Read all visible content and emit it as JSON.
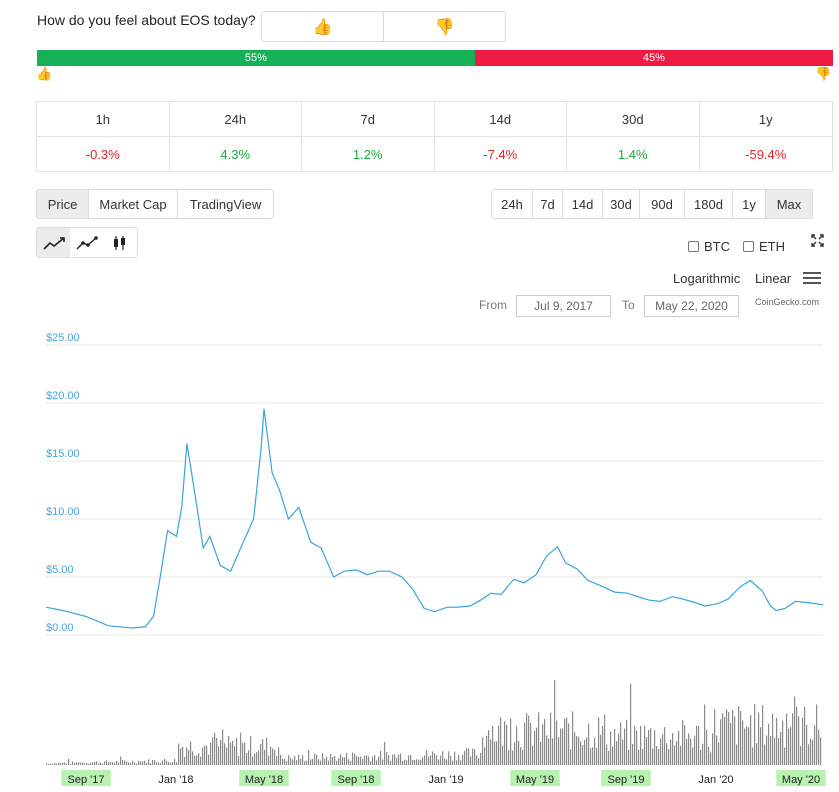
{
  "sentiment": {
    "question": "How do you feel about EOS today?",
    "up_icon": "thumbs-up-icon",
    "down_icon": "thumbs-down-icon",
    "up_percent": 55,
    "down_percent": 45,
    "up_label": "55%",
    "down_label": "45%",
    "up_color": "#16b157",
    "down_color": "#ee1a43"
  },
  "price_change": {
    "headers": [
      "1h",
      "24h",
      "7d",
      "14d",
      "30d",
      "1y"
    ],
    "values": [
      "-0.3%",
      "4.3%",
      "1.2%",
      "-7.4%",
      "1.4%",
      "-59.4%"
    ],
    "directions": [
      "neg",
      "pos",
      "pos",
      "neg",
      "pos",
      "neg"
    ]
  },
  "chart_tabs": {
    "items": [
      "Price",
      "Market Cap",
      "TradingView"
    ],
    "active": "Price"
  },
  "range_tabs": {
    "items": [
      "24h",
      "7d",
      "14d",
      "30d",
      "90d",
      "180d",
      "1y",
      "Max"
    ],
    "active": "Max"
  },
  "chart_style": {
    "items": [
      "line-chart-icon",
      "line-markers-icon",
      "candlestick-icon"
    ],
    "active": "line-chart-icon"
  },
  "compare": {
    "btc_label": "BTC",
    "eth_label": "ETH"
  },
  "scale": {
    "log_label": "Logarithmic",
    "linear_label": "Linear"
  },
  "date_range": {
    "from_label": "From",
    "from_value": "Jul 9, 2017",
    "to_label": "To",
    "to_value": "May 22, 2020"
  },
  "credit": "CoinGecko.com",
  "chart_data": {
    "type": "line",
    "ylim": [
      0,
      25
    ],
    "yticks": [
      "$0.00",
      "$5.00",
      "$10.00",
      "$15.00",
      "$20.00",
      "$25.00"
    ],
    "ytick_values": [
      0,
      5,
      10,
      15,
      20,
      25
    ],
    "xticks": [
      "Sep '17",
      "Jan '18",
      "May '18",
      "Sep '18",
      "Jan '19",
      "May '19",
      "Sep '19",
      "Jan '20",
      "May '20"
    ],
    "xtick_highlight": [
      true,
      false,
      true,
      true,
      false,
      true,
      true,
      false,
      true
    ],
    "line_color": "#3aa3d9",
    "highlight_color": "#b7f2b1",
    "series": [
      {
        "x": [
          "2017-07-09",
          "2017-08-01",
          "2017-09-01",
          "2017-10-01",
          "2017-11-01",
          "2017-11-20",
          "2017-12-01",
          "2017-12-10",
          "2017-12-20",
          "2018-01-01",
          "2018-01-08",
          "2018-01-15",
          "2018-01-25",
          "2018-02-06",
          "2018-02-15",
          "2018-03-01",
          "2018-03-15",
          "2018-04-01",
          "2018-04-15",
          "2018-04-25",
          "2018-04-29",
          "2018-05-10",
          "2018-05-20",
          "2018-06-01",
          "2018-06-15",
          "2018-07-01",
          "2018-07-15",
          "2018-08-01",
          "2018-08-15",
          "2018-09-01",
          "2018-09-15",
          "2018-10-01",
          "2018-10-15",
          "2018-11-01",
          "2018-11-15",
          "2018-12-01",
          "2018-12-15",
          "2019-01-01",
          "2019-01-15",
          "2019-02-01",
          "2019-02-15",
          "2019-03-01",
          "2019-03-15",
          "2019-04-01",
          "2019-04-15",
          "2019-05-01",
          "2019-05-15",
          "2019-05-30",
          "2019-06-10",
          "2019-06-25",
          "2019-07-10",
          "2019-07-25",
          "2019-08-15",
          "2019-09-01",
          "2019-09-15",
          "2019-10-01",
          "2019-10-15",
          "2019-11-01",
          "2019-11-15",
          "2019-12-01",
          "2019-12-15",
          "2020-01-01",
          "2020-01-15",
          "2020-02-01",
          "2020-02-14",
          "2020-03-01",
          "2020-03-12",
          "2020-03-20",
          "2020-04-01",
          "2020-04-15",
          "2020-05-01",
          "2020-05-22"
        ],
        "y": [
          2.4,
          2.1,
          1.6,
          0.8,
          0.6,
          0.7,
          1.6,
          5.0,
          9.0,
          8.5,
          11.0,
          16.5,
          12.5,
          7.5,
          8.5,
          6.0,
          5.5,
          8.0,
          10.0,
          16.0,
          19.5,
          14.0,
          12.5,
          10.0,
          11.0,
          8.0,
          7.5,
          5.0,
          5.5,
          5.6,
          5.2,
          5.5,
          5.5,
          5.0,
          4.0,
          2.3,
          2.0,
          2.4,
          2.4,
          2.5,
          3.0,
          3.6,
          3.5,
          4.8,
          4.5,
          5.2,
          6.8,
          7.6,
          6.2,
          5.7,
          4.7,
          4.3,
          3.7,
          3.6,
          3.3,
          3.0,
          2.9,
          3.3,
          3.1,
          2.8,
          2.5,
          2.7,
          3.1,
          4.2,
          4.7,
          3.8,
          2.5,
          2.1,
          2.3,
          2.9,
          2.8,
          2.6
        ]
      }
    ]
  }
}
